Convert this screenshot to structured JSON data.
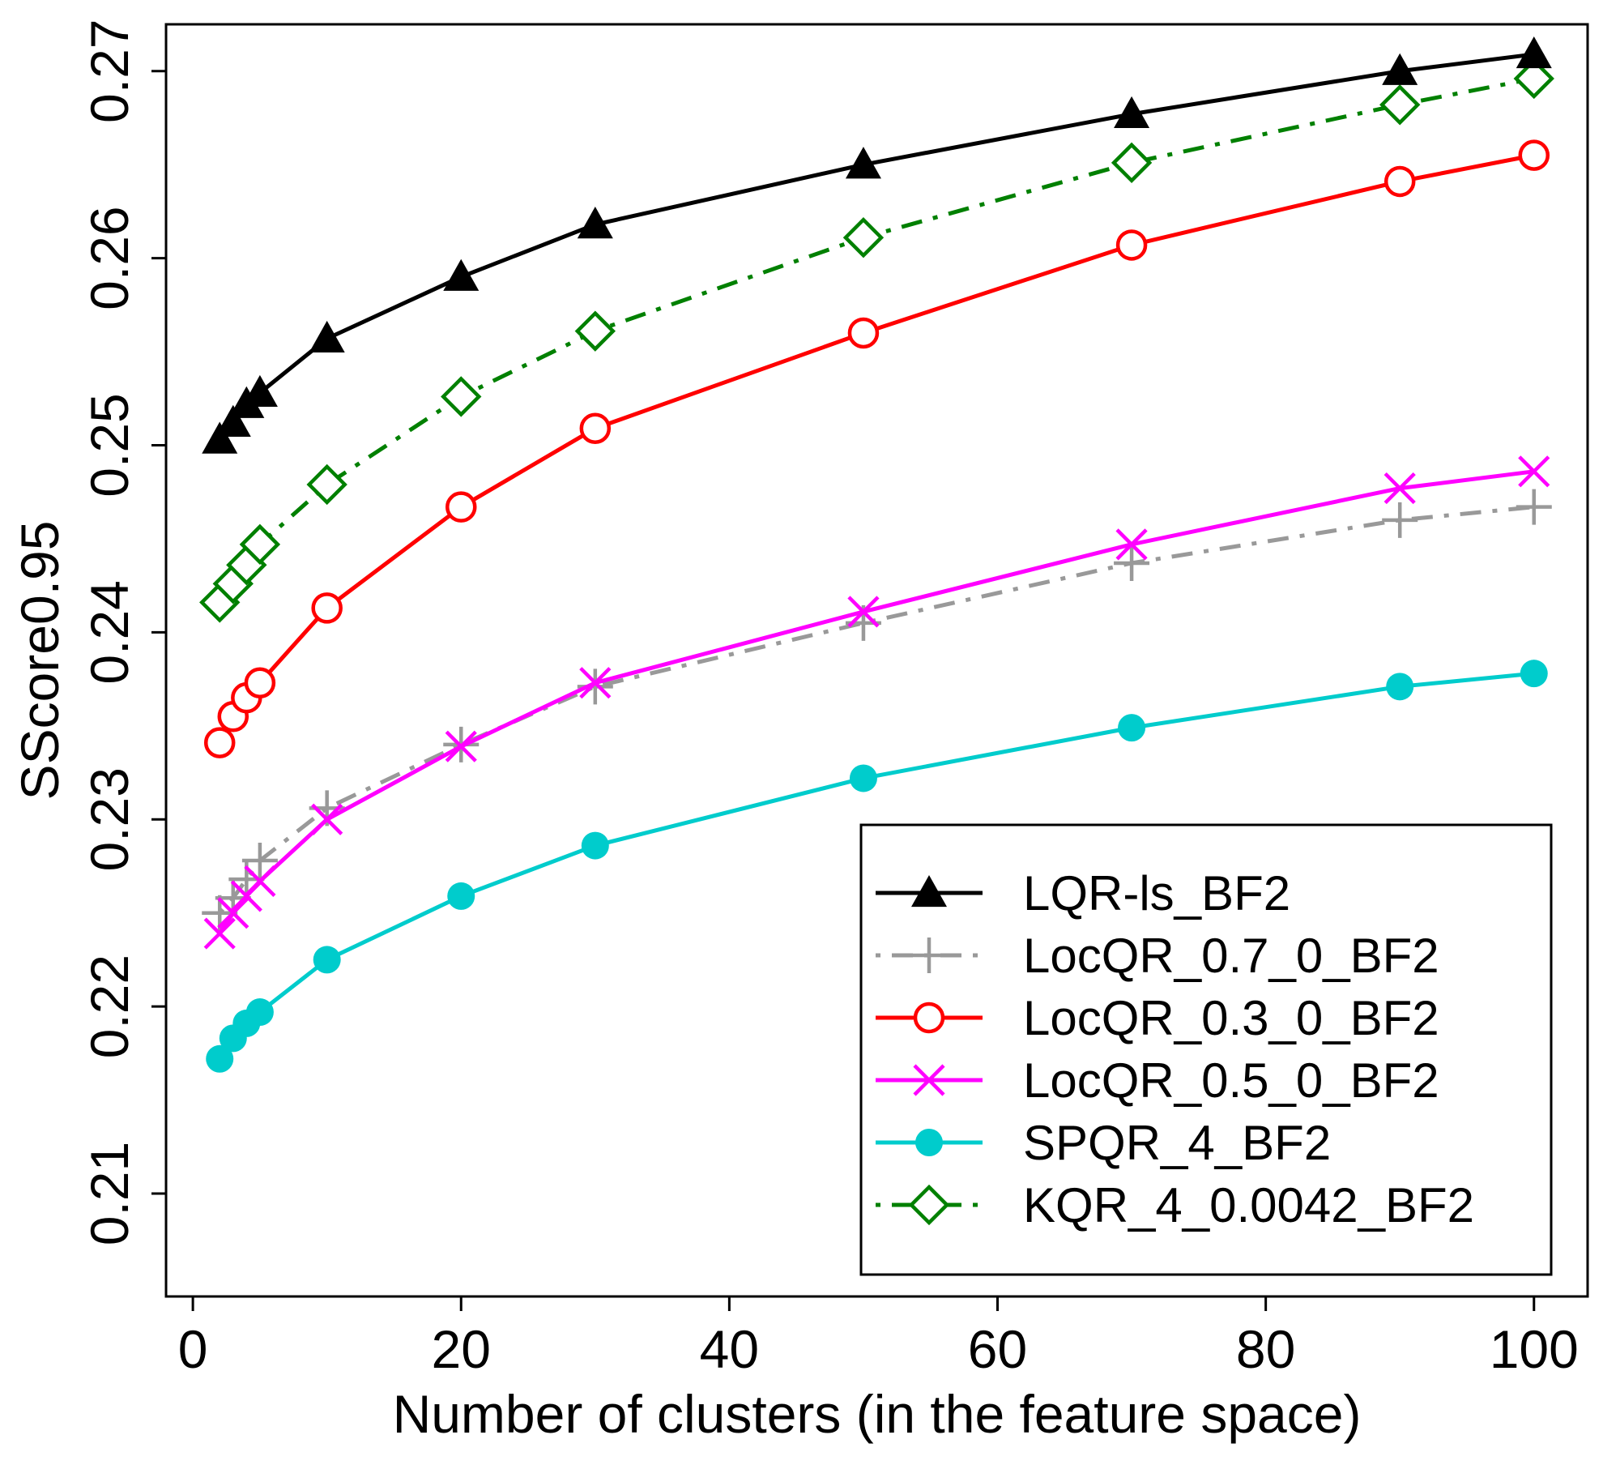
{
  "chart_data": {
    "type": "line",
    "title": "",
    "xlabel": "Number of clusters (in the feature space)",
    "ylabel": "SScore0.95",
    "xlim": [
      -2,
      104
    ],
    "ylim": [
      0.2045,
      0.2725
    ],
    "xticks": [
      0,
      20,
      40,
      60,
      80,
      100
    ],
    "yticks": [
      0.21,
      0.22,
      0.23,
      0.24,
      0.25,
      0.26,
      0.27
    ],
    "x_tick_labels": [
      "0",
      "20",
      "40",
      "60",
      "80",
      "100"
    ],
    "y_tick_labels": [
      "0.21",
      "0.22",
      "0.23",
      "0.24",
      "0.25",
      "0.26",
      "0.27"
    ],
    "grid": false,
    "legend_position": "bottom-right",
    "x": [
      2,
      3,
      4,
      5,
      10,
      20,
      30,
      50,
      70,
      90,
      100
    ],
    "series": [
      {
        "name": "LQR-ls_BF2",
        "color": "#000000",
        "marker": "triangle",
        "dash": "solid",
        "values": [
          0.2503,
          0.2512,
          0.2522,
          0.2528,
          0.2557,
          0.259,
          0.2618,
          0.265,
          0.2677,
          0.27,
          0.2709
        ]
      },
      {
        "name": "LocQR_0.7_0_BF2",
        "color": "#999999",
        "marker": "plus",
        "dash": "dotdash",
        "values": [
          0.225,
          0.2258,
          0.2268,
          0.2278,
          0.2306,
          0.234,
          0.2371,
          0.2405,
          0.2437,
          0.246,
          0.2467
        ]
      },
      {
        "name": "LocQR_0.3_0_BF2",
        "color": "#ff0000",
        "marker": "circle",
        "dash": "solid",
        "values": [
          0.2341,
          0.2355,
          0.2365,
          0.2373,
          0.2413,
          0.2467,
          0.2509,
          0.256,
          0.2607,
          0.2641,
          0.2655
        ]
      },
      {
        "name": "LocQR_0.5_0_BF2",
        "color": "#ff00ff",
        "marker": "cross",
        "dash": "solid",
        "values": [
          0.2239,
          0.225,
          0.2259,
          0.2267,
          0.23,
          0.2339,
          0.2373,
          0.2411,
          0.2447,
          0.2477,
          0.2486
        ]
      },
      {
        "name": "SPQR_4_BF2",
        "color": "#00cccc",
        "marker": "dot",
        "dash": "solid",
        "values": [
          0.2172,
          0.2183,
          0.2191,
          0.2197,
          0.2225,
          0.2259,
          0.2286,
          0.2322,
          0.2349,
          0.2371,
          0.2378
        ]
      },
      {
        "name": "KQR_4_0.0042_BF2",
        "color": "#008000",
        "marker": "diamond",
        "dash": "dotdash",
        "values": [
          0.2416,
          0.2426,
          0.2436,
          0.2447,
          0.2479,
          0.2526,
          0.2561,
          0.2611,
          0.2651,
          0.2682,
          0.2696
        ]
      }
    ],
    "legend_order": [
      0,
      1,
      2,
      3,
      4,
      5
    ]
  }
}
